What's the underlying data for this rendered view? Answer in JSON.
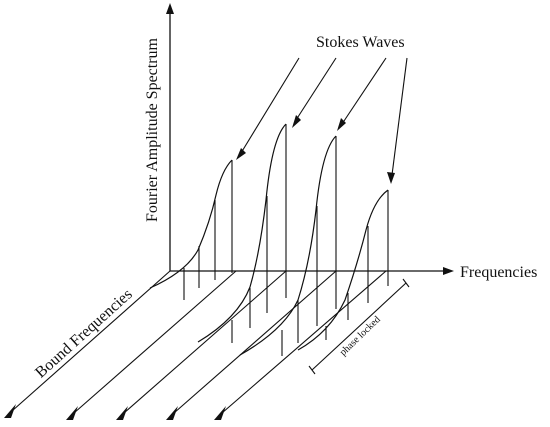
{
  "labels": {
    "y_axis": "Fourier Amplitude Spectrum",
    "x_axis": "Frequencies",
    "depth_axis": "Bound Frequencies",
    "callout": "Stokes Waves",
    "bracket": "phase locked"
  },
  "colors": {
    "ink": "#111111",
    "background": "#ffffff"
  },
  "spectra_count": 4,
  "stems_per_spectrum": 4
}
